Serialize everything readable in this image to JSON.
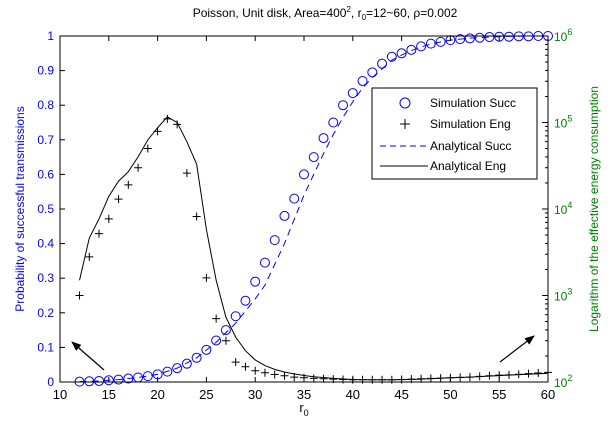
{
  "chart_data": {
    "type": "line",
    "title": {
      "prefix": "Poisson, Unit disk, Area=400",
      "area_exponent": "2",
      "r_part": ", r",
      "r_subscript": "0",
      "suffix": "=12~60, ρ=0.002"
    },
    "xlabel": {
      "main": "r",
      "subscript": "0"
    },
    "ylabel_left": "Probability of successful transmissions",
    "ylabel_right": "Logarithm of the effective energy consumption",
    "xlim": [
      10,
      60
    ],
    "ylim_left": [
      0,
      1
    ],
    "ylim_right": [
      100,
      1000000
    ],
    "right_axis_scale": "log",
    "x_ticks": [
      "10",
      "15",
      "20",
      "25",
      "30",
      "35",
      "40",
      "45",
      "50",
      "55",
      "60"
    ],
    "y_ticks_left": [
      "0",
      "0.1",
      "0.2",
      "0.3",
      "0.4",
      "0.5",
      "0.6",
      "0.7",
      "0.8",
      "0.9",
      "1"
    ],
    "y_ticks_right": [
      {
        "base": "10",
        "exp": "2"
      },
      {
        "base": "10",
        "exp": "3"
      },
      {
        "base": "10",
        "exp": "4"
      },
      {
        "base": "10",
        "exp": "5"
      },
      {
        "base": "10",
        "exp": "6"
      }
    ],
    "left_axis_color": "#0000ff",
    "right_axis_color": "#008000",
    "grid": false,
    "legend_position": "upper-right",
    "series": [
      {
        "name": "Simulation Succ",
        "style": "circle-markers",
        "color": "#0000ff",
        "axis": "left",
        "x": [
          12,
          13,
          14,
          15,
          16,
          17,
          18,
          19,
          20,
          21,
          22,
          23,
          24,
          25,
          26,
          27,
          28,
          29,
          30,
          31,
          32,
          33,
          34,
          35,
          36,
          37,
          38,
          39,
          40,
          41,
          42,
          43,
          44,
          45,
          46,
          47,
          48,
          49,
          50,
          51,
          52,
          53,
          54,
          55,
          56,
          57,
          58,
          59,
          60
        ],
        "y": [
          0.001,
          0.002,
          0.003,
          0.005,
          0.007,
          0.01,
          0.013,
          0.017,
          0.022,
          0.03,
          0.04,
          0.053,
          0.07,
          0.093,
          0.12,
          0.15,
          0.19,
          0.235,
          0.29,
          0.345,
          0.41,
          0.48,
          0.53,
          0.6,
          0.65,
          0.705,
          0.75,
          0.8,
          0.835,
          0.87,
          0.895,
          0.92,
          0.94,
          0.95,
          0.96,
          0.97,
          0.978,
          0.983,
          0.988,
          0.991,
          0.993,
          0.995,
          0.997,
          0.998,
          0.998,
          0.999,
          0.999,
          1.0,
          1.0
        ]
      },
      {
        "name": "Simulation Eng",
        "style": "plus-markers",
        "color": "#000000",
        "axis": "right",
        "x": [
          12,
          13,
          14,
          15,
          16,
          17,
          18,
          19,
          20,
          21,
          22,
          23,
          24,
          25,
          26,
          27,
          28,
          29,
          30,
          31,
          32,
          33,
          34,
          35,
          36,
          37,
          38,
          39,
          40,
          41,
          42,
          43,
          44,
          45,
          46,
          47,
          48,
          49,
          50,
          51,
          52,
          53,
          54,
          55,
          56,
          57,
          58,
          59,
          60
        ],
        "y": [
          1000,
          2800,
          5200,
          7700,
          13000,
          19000,
          30000,
          50000,
          79000,
          110000,
          95000,
          26000,
          8200,
          1600,
          540,
          300,
          170,
          150,
          135,
          128,
          122,
          118,
          114,
          112,
          110,
          109,
          108,
          107,
          106,
          106,
          106,
          106,
          106,
          107,
          108,
          109,
          110,
          111,
          112,
          113,
          114,
          116,
          118,
          120,
          121,
          123,
          125,
          127,
          129
        ]
      },
      {
        "name": "Analytical Succ",
        "style": "dashed-line",
        "color": "#0000ff",
        "axis": "left",
        "x": [
          12,
          14,
          16,
          18,
          20,
          22,
          24,
          26,
          28,
          30,
          31,
          32,
          33,
          34,
          35,
          36,
          37,
          38,
          39,
          40,
          41,
          42,
          43,
          44,
          45,
          46,
          47,
          48,
          50,
          52,
          54,
          56,
          58,
          60
        ],
        "y": [
          0.001,
          0.003,
          0.007,
          0.013,
          0.022,
          0.04,
          0.07,
          0.115,
          0.17,
          0.24,
          0.28,
          0.34,
          0.4,
          0.47,
          0.54,
          0.6,
          0.66,
          0.715,
          0.765,
          0.81,
          0.85,
          0.88,
          0.905,
          0.93,
          0.945,
          0.958,
          0.968,
          0.977,
          0.988,
          0.994,
          0.997,
          0.999,
          1.0,
          1.0
        ]
      },
      {
        "name": "Analytical Eng",
        "style": "solid-line",
        "color": "#000000",
        "axis": "right",
        "x": [
          12,
          13,
          14,
          15,
          16,
          17,
          18,
          19,
          20,
          21,
          22,
          23,
          24,
          25,
          26,
          27,
          28,
          29,
          30,
          31,
          32,
          33,
          34,
          35,
          36,
          38,
          40,
          42,
          44,
          46,
          48,
          50,
          52,
          54,
          56,
          58,
          60
        ],
        "y": [
          1500,
          4600,
          7700,
          14000,
          21000,
          27000,
          40000,
          63000,
          87000,
          116000,
          100000,
          60000,
          33000,
          5800,
          1500,
          560,
          330,
          230,
          180,
          155,
          140,
          130,
          124,
          119,
          115,
          110,
          107,
          106,
          106,
          107,
          109,
          112,
          114,
          117,
          120,
          123,
          126
        ]
      }
    ],
    "annotations": [
      {
        "type": "arrow",
        "points_to": "left axis"
      },
      {
        "type": "arrow",
        "points_to": "right axis"
      }
    ]
  }
}
